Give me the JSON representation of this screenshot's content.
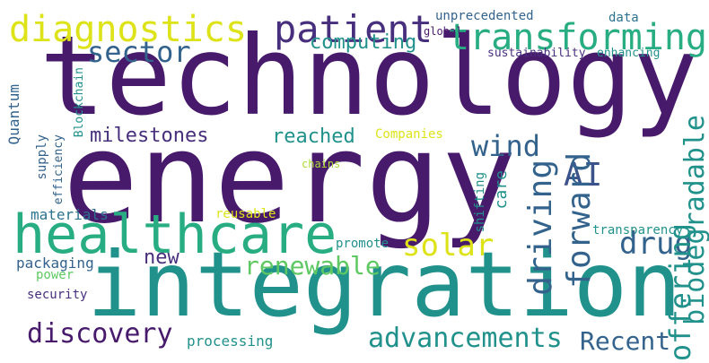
{
  "colors": {
    "background": "#ffffff",
    "viridis": [
      "#481a6c",
      "#472f7d",
      "#3b528b",
      "#33638d",
      "#2c728e",
      "#21918c",
      "#27ad81",
      "#5ec962",
      "#aadc32",
      "#dde318"
    ]
  },
  "words": [
    {
      "id": "technology",
      "text": "technology"
    },
    {
      "id": "energy",
      "text": "energy"
    },
    {
      "id": "integration",
      "text": "integration"
    },
    {
      "id": "healthcare",
      "text": "healthcare"
    },
    {
      "id": "diagnostics",
      "text": "diagnostics"
    },
    {
      "id": "patient",
      "text": "patient"
    },
    {
      "id": "transforming",
      "text": "transforming"
    },
    {
      "id": "sector",
      "text": "sector"
    },
    {
      "id": "computing",
      "text": "computing"
    },
    {
      "id": "unprecedented",
      "text": "unprecedented"
    },
    {
      "id": "data",
      "text": "data"
    },
    {
      "id": "global",
      "text": "global"
    },
    {
      "id": "sustainability",
      "text": "sustainability"
    },
    {
      "id": "enhancing",
      "text": "enhancing"
    },
    {
      "id": "milestones",
      "text": "milestones"
    },
    {
      "id": "reached",
      "text": "reached"
    },
    {
      "id": "companies",
      "text": "Companies"
    },
    {
      "id": "chains",
      "text": "chains"
    },
    {
      "id": "wind",
      "text": "wind"
    },
    {
      "id": "solar",
      "text": "solar"
    },
    {
      "id": "renewable",
      "text": "renewable"
    },
    {
      "id": "new",
      "text": "new"
    },
    {
      "id": "promote",
      "text": "promote"
    },
    {
      "id": "reusable",
      "text": "reusable"
    },
    {
      "id": "materials",
      "text": "materials"
    },
    {
      "id": "packaging",
      "text": "packaging"
    },
    {
      "id": "power",
      "text": "power"
    },
    {
      "id": "security",
      "text": "security"
    },
    {
      "id": "discovery",
      "text": "discovery"
    },
    {
      "id": "advancements",
      "text": "advancements"
    },
    {
      "id": "recent",
      "text": "Recent"
    },
    {
      "id": "processing",
      "text": "processing"
    },
    {
      "id": "transparency",
      "text": "transparency"
    },
    {
      "id": "ai",
      "text": "AI"
    },
    {
      "id": "drug",
      "text": "drug"
    },
    {
      "id": "offering",
      "text": "offering"
    },
    {
      "id": "forward",
      "text": "forward"
    },
    {
      "id": "driving",
      "text": "driving"
    },
    {
      "id": "care",
      "text": "care"
    },
    {
      "id": "shifting",
      "text": "shifting"
    },
    {
      "id": "biodegradable",
      "text": "biodegradable"
    },
    {
      "id": "quantum",
      "text": "Quantum"
    },
    {
      "id": "blockchain",
      "text": "Blockchain"
    },
    {
      "id": "supply",
      "text": "supply"
    },
    {
      "id": "efficiency",
      "text": "efficiency"
    }
  ]
}
